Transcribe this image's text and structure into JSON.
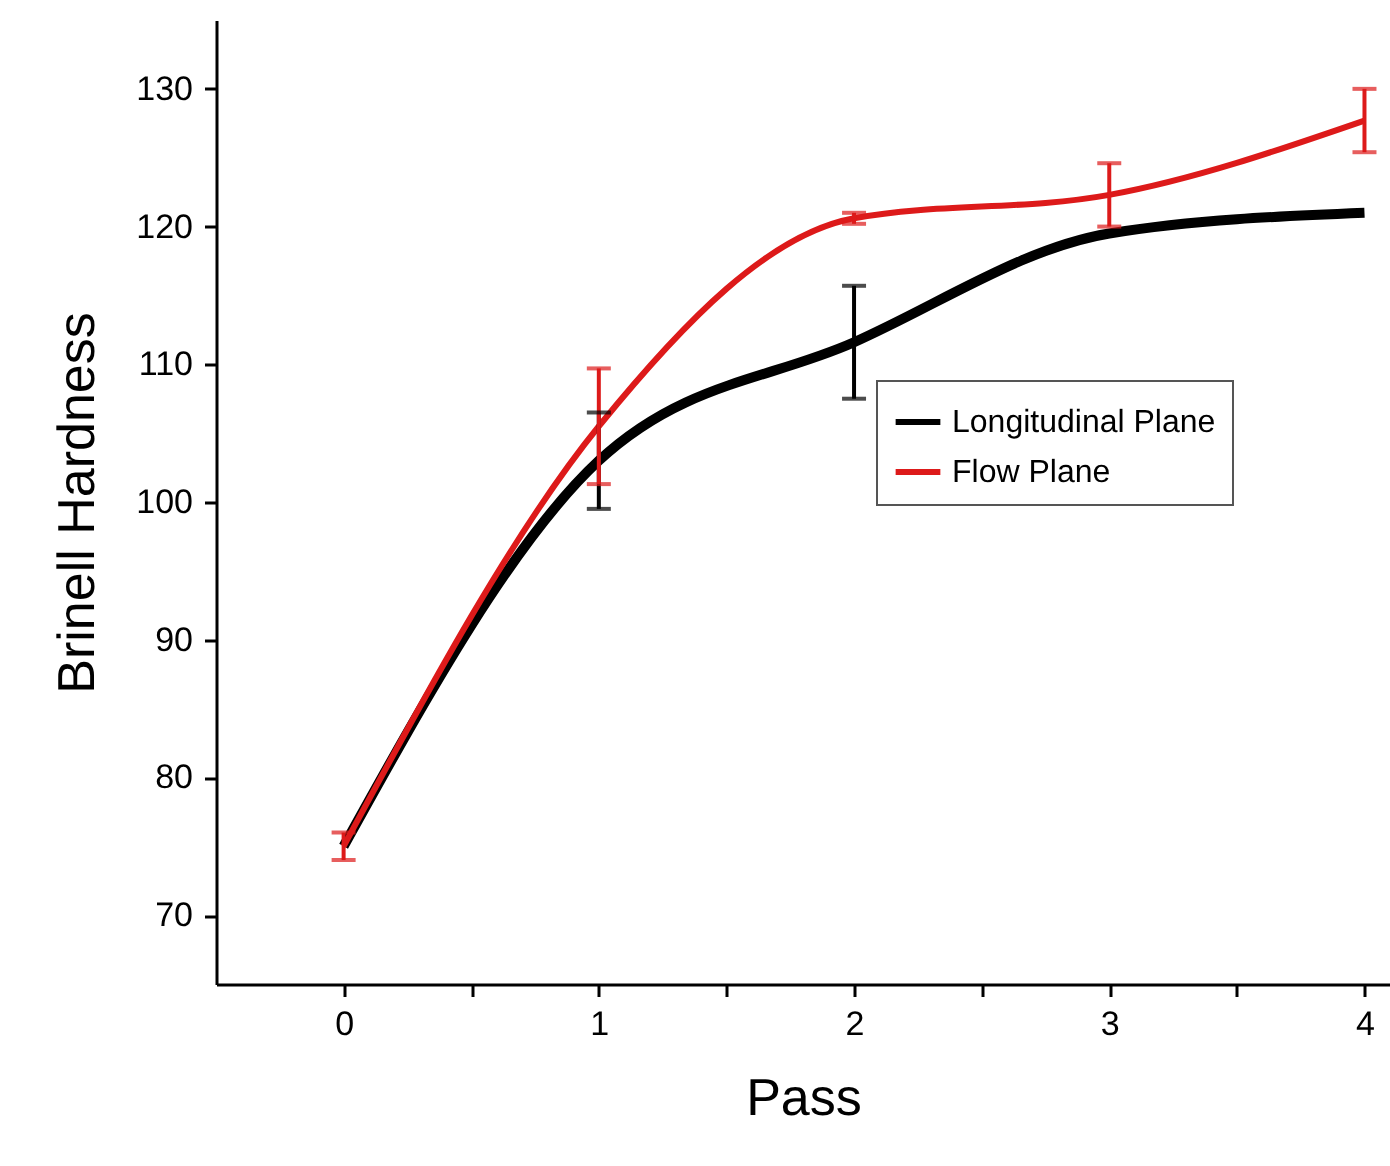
{
  "chart_data": {
    "type": "line",
    "xlabel": "Pass",
    "ylabel": "Brinell Hardness",
    "x": [
      0,
      1,
      2,
      3,
      4
    ],
    "series": [
      {
        "name": "Longitudinal Plane",
        "color": "#000000",
        "values": [
          75,
          103,
          111.6,
          119.5,
          121
        ],
        "errors": [
          null,
          3.5,
          4.1,
          null,
          null
        ]
      },
      {
        "name": "Flow Plane",
        "color": "#dd1a1a",
        "values": [
          75,
          105.5,
          120.6,
          122.3,
          127.7
        ],
        "errors": [
          1,
          4.2,
          0.4,
          2.3,
          2.3
        ]
      }
    ],
    "xlim": [
      -0.5,
      4.1
    ],
    "xticks": [
      0,
      {
        "value": 0.5,
        "label": null
      },
      1,
      {
        "value": 1.5,
        "label": null
      },
      2,
      {
        "value": 2.5,
        "label": null
      },
      3,
      {
        "value": 3.5,
        "label": null
      },
      4
    ],
    "ylim": [
      65,
      135
    ],
    "yticks": [
      70,
      80,
      90,
      100,
      110,
      120,
      130
    ],
    "grid": false,
    "legend": "right",
    "marker": "none",
    "line_style": "solid"
  }
}
